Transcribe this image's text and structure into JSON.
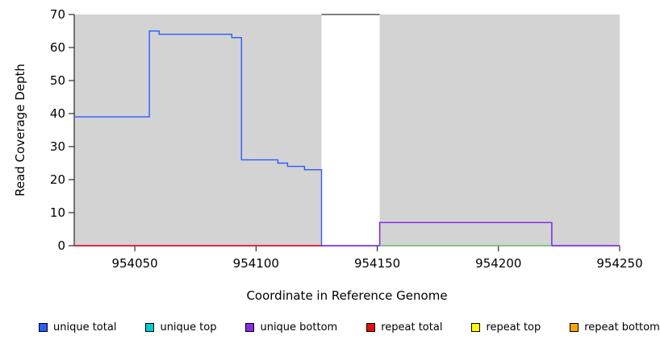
{
  "figure": {
    "background": "#FFFFFF"
  },
  "chart_data": {
    "type": "line",
    "title": "",
    "xlabel": "Coordinate in Reference Genome",
    "ylabel": "Read Coverage Depth",
    "xlim": [
      954025,
      954250
    ],
    "ylim": [
      0,
      70
    ],
    "x_ticks": [
      954050,
      954100,
      954150,
      954200,
      954250
    ],
    "y_ticks": [
      0,
      10,
      20,
      30,
      40,
      50,
      60,
      70
    ],
    "grid": false,
    "background_regions": [
      {
        "name": "covered-left",
        "from": 954025,
        "to": 954127,
        "color": "#D3D3D3"
      },
      {
        "name": "gap",
        "from": 954127,
        "to": 954151,
        "color": "#FFFFFF"
      },
      {
        "name": "covered-right",
        "from": 954151,
        "to": 954250,
        "color": "#D3D3D3"
      }
    ],
    "top_border_segment": {
      "from": 954127,
      "to": 954151,
      "y": 70,
      "color": "#000000"
    },
    "series": [
      {
        "name": "unique total",
        "type": "step",
        "color": "#2B5CFF",
        "points": [
          [
            954025,
            39
          ],
          [
            954056,
            39
          ],
          [
            954056,
            65
          ],
          [
            954060,
            65
          ],
          [
            954060,
            64
          ],
          [
            954090,
            64
          ],
          [
            954090,
            63
          ],
          [
            954094,
            63
          ],
          [
            954094,
            26
          ],
          [
            954109,
            26
          ],
          [
            954109,
            25
          ],
          [
            954113,
            25
          ],
          [
            954113,
            24
          ],
          [
            954120,
            24
          ],
          [
            954120,
            23
          ],
          [
            954127,
            23
          ],
          [
            954127,
            0
          ],
          [
            954151,
            0
          ],
          [
            954151,
            7
          ],
          [
            954222,
            7
          ],
          [
            954222,
            0
          ],
          [
            954250,
            0
          ]
        ]
      },
      {
        "name": "unique bottom",
        "type": "step",
        "color": "#8A2BE2",
        "points": [
          [
            954025,
            0
          ],
          [
            954127,
            0
          ],
          [
            954151,
            0
          ],
          [
            954151,
            7
          ],
          [
            954222,
            7
          ],
          [
            954222,
            0
          ],
          [
            954250,
            0
          ]
        ]
      }
    ],
    "baseline_segments": [
      {
        "name": "green-zero-line",
        "color": "#66BB66",
        "from": 954151,
        "to": 954222,
        "y": 0
      },
      {
        "name": "repeat-total-zero",
        "color": "#E01010",
        "from": 954025,
        "to": 954127,
        "y": 0
      }
    ],
    "legend": {
      "position": "bottom",
      "items": [
        {
          "label": "unique total",
          "color": "#2B5CFF"
        },
        {
          "label": "unique top",
          "color": "#00CED1"
        },
        {
          "label": "unique bottom",
          "color": "#8A2BE2"
        },
        {
          "label": "repeat total",
          "color": "#E01010"
        },
        {
          "label": "repeat top",
          "color": "#FFFF00"
        },
        {
          "label": "repeat bottom",
          "color": "#FFA500"
        }
      ]
    }
  }
}
